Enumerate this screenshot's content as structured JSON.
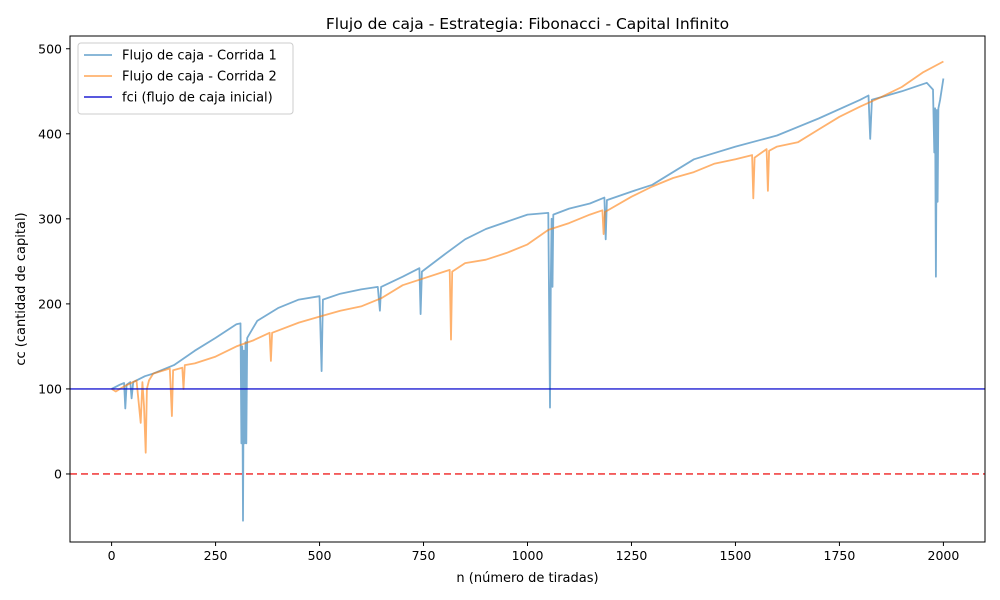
{
  "chart_data": {
    "type": "line",
    "title": "Flujo de caja - Estrategia: Fibonacci - Capital Infinito",
    "xlabel": "n (número de tiradas)",
    "ylabel": "cc (cantidad de capital)",
    "xlim": [
      -100,
      2100
    ],
    "ylim": [
      -80,
      515
    ],
    "xticks": [
      0,
      250,
      500,
      750,
      1000,
      1250,
      1500,
      1750,
      2000
    ],
    "yticks": [
      0,
      100,
      200,
      300,
      400,
      500
    ],
    "grid": false,
    "legend_position": "top-left",
    "series": [
      {
        "name": "Flujo de caja - Corrida 1",
        "color": "#1f77b4",
        "points": [
          [
            0,
            100
          ],
          [
            20,
            105
          ],
          [
            30,
            107
          ],
          [
            33,
            77
          ],
          [
            36,
            105
          ],
          [
            45,
            108
          ],
          [
            48,
            89
          ],
          [
            52,
            108
          ],
          [
            80,
            115
          ],
          [
            100,
            118
          ],
          [
            150,
            128
          ],
          [
            200,
            145
          ],
          [
            250,
            160
          ],
          [
            300,
            176
          ],
          [
            310,
            177
          ],
          [
            312,
            36
          ],
          [
            314,
            150
          ],
          [
            316,
            -55
          ],
          [
            318,
            145
          ],
          [
            320,
            36
          ],
          [
            322,
            155
          ],
          [
            324,
            36
          ],
          [
            326,
            160
          ],
          [
            350,
            180
          ],
          [
            400,
            195
          ],
          [
            450,
            205
          ],
          [
            500,
            209
          ],
          [
            505,
            121
          ],
          [
            508,
            205
          ],
          [
            550,
            212
          ],
          [
            600,
            217
          ],
          [
            640,
            220
          ],
          [
            645,
            192
          ],
          [
            648,
            220
          ],
          [
            700,
            232
          ],
          [
            740,
            242
          ],
          [
            743,
            188
          ],
          [
            746,
            238
          ],
          [
            800,
            258
          ],
          [
            850,
            276
          ],
          [
            900,
            288
          ],
          [
            1000,
            305
          ],
          [
            1050,
            307
          ],
          [
            1054,
            78
          ],
          [
            1056,
            225
          ],
          [
            1058,
            300
          ],
          [
            1060,
            220
          ],
          [
            1062,
            305
          ],
          [
            1100,
            312
          ],
          [
            1150,
            318
          ],
          [
            1185,
            325
          ],
          [
            1188,
            276
          ],
          [
            1191,
            322
          ],
          [
            1250,
            332
          ],
          [
            1300,
            340
          ],
          [
            1400,
            370
          ],
          [
            1500,
            385
          ],
          [
            1600,
            398
          ],
          [
            1700,
            418
          ],
          [
            1800,
            440
          ],
          [
            1820,
            445
          ],
          [
            1824,
            394
          ],
          [
            1828,
            440
          ],
          [
            1900,
            450
          ],
          [
            1960,
            460
          ],
          [
            1975,
            452
          ],
          [
            1978,
            378
          ],
          [
            1980,
            430
          ],
          [
            1982,
            232
          ],
          [
            1984,
            428
          ],
          [
            1986,
            320
          ],
          [
            1988,
            430
          ],
          [
            1992,
            440
          ],
          [
            2000,
            465
          ]
        ]
      },
      {
        "name": "Flujo de caja - Corrida 2",
        "color": "#ff7f0e",
        "points": [
          [
            0,
            100
          ],
          [
            10,
            97
          ],
          [
            30,
            103
          ],
          [
            60,
            110
          ],
          [
            70,
            60
          ],
          [
            74,
            108
          ],
          [
            78,
            80
          ],
          [
            82,
            25
          ],
          [
            85,
            100
          ],
          [
            90,
            110
          ],
          [
            100,
            118
          ],
          [
            140,
            124
          ],
          [
            145,
            68
          ],
          [
            148,
            122
          ],
          [
            170,
            125
          ],
          [
            173,
            100
          ],
          [
            176,
            128
          ],
          [
            200,
            130
          ],
          [
            250,
            138
          ],
          [
            300,
            150
          ],
          [
            340,
            157
          ],
          [
            380,
            166
          ],
          [
            383,
            133
          ],
          [
            386,
            166
          ],
          [
            450,
            178
          ],
          [
            500,
            185
          ],
          [
            550,
            192
          ],
          [
            600,
            197
          ],
          [
            650,
            207
          ],
          [
            700,
            222
          ],
          [
            800,
            238
          ],
          [
            813,
            240
          ],
          [
            816,
            158
          ],
          [
            819,
            238
          ],
          [
            850,
            248
          ],
          [
            900,
            252
          ],
          [
            950,
            260
          ],
          [
            1000,
            270
          ],
          [
            1050,
            287
          ],
          [
            1100,
            295
          ],
          [
            1150,
            305
          ],
          [
            1180,
            310
          ],
          [
            1183,
            282
          ],
          [
            1186,
            308
          ],
          [
            1250,
            326
          ],
          [
            1300,
            338
          ],
          [
            1350,
            348
          ],
          [
            1400,
            355
          ],
          [
            1450,
            365
          ],
          [
            1500,
            370
          ],
          [
            1540,
            375
          ],
          [
            1543,
            324
          ],
          [
            1546,
            372
          ],
          [
            1575,
            382
          ],
          [
            1578,
            333
          ],
          [
            1581,
            380
          ],
          [
            1600,
            385
          ],
          [
            1650,
            390
          ],
          [
            1700,
            405
          ],
          [
            1750,
            420
          ],
          [
            1800,
            432
          ],
          [
            1850,
            443
          ],
          [
            1900,
            455
          ],
          [
            1950,
            472
          ],
          [
            2000,
            485
          ]
        ]
      },
      {
        "name": "fci (flujo de caja inicial)",
        "color": "#0000cc",
        "type": "hline",
        "value": 100
      }
    ],
    "reference_lines": [
      {
        "value": 0,
        "color": "#ee2222",
        "style": "dashed"
      }
    ]
  }
}
